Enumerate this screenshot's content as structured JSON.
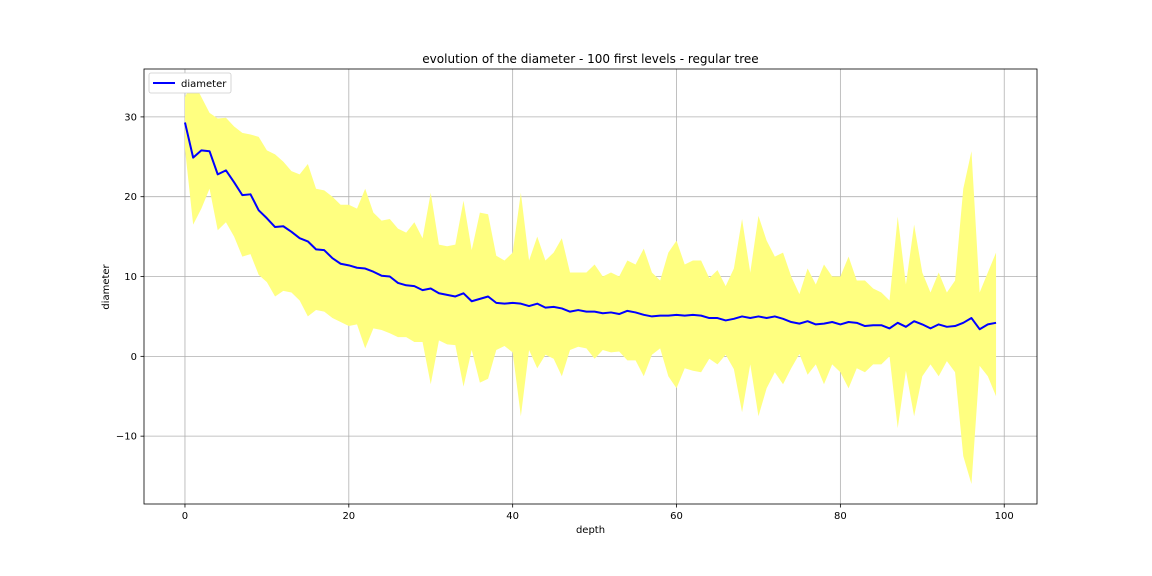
{
  "chart_data": {
    "type": "line",
    "title": "evolution of the diameter - 100 first levels - regular tree",
    "xlabel": "depth",
    "ylabel": "diameter",
    "xlim": [
      -5,
      104
    ],
    "ylim": [
      -18.5,
      36
    ],
    "xticks": [
      0,
      20,
      40,
      60,
      80,
      100
    ],
    "yticks": [
      -10,
      0,
      10,
      20,
      30
    ],
    "grid": true,
    "legend": {
      "placement": "top-left",
      "entries": [
        "diameter"
      ]
    },
    "colors": {
      "line": "#0000ff",
      "band": "#ffff80"
    },
    "x": [
      0,
      1,
      2,
      3,
      4,
      5,
      6,
      7,
      8,
      9,
      10,
      11,
      12,
      13,
      14,
      15,
      16,
      17,
      18,
      19,
      20,
      21,
      22,
      23,
      24,
      25,
      26,
      27,
      28,
      29,
      30,
      31,
      32,
      33,
      34,
      35,
      36,
      37,
      38,
      39,
      40,
      41,
      42,
      43,
      44,
      45,
      46,
      47,
      48,
      49,
      50,
      51,
      52,
      53,
      54,
      55,
      56,
      57,
      58,
      59,
      60,
      61,
      62,
      63,
      64,
      65,
      66,
      67,
      68,
      69,
      70,
      71,
      72,
      73,
      74,
      75,
      76,
      77,
      78,
      79,
      80,
      81,
      82,
      83,
      84,
      85,
      86,
      87,
      88,
      89,
      90,
      91,
      92,
      93,
      94,
      95,
      96,
      97,
      98,
      99
    ],
    "series": [
      {
        "name": "diameter",
        "values": [
          29.3,
          24.9,
          25.8,
          25.7,
          22.8,
          23.3,
          21.8,
          20.2,
          20.3,
          18.3,
          17.3,
          16.2,
          16.3,
          15.6,
          14.8,
          14.4,
          13.4,
          13.3,
          12.3,
          11.6,
          11.4,
          11.1,
          11.0,
          10.6,
          10.1,
          10.0,
          9.2,
          8.9,
          8.8,
          8.3,
          8.5,
          7.9,
          7.7,
          7.5,
          7.9,
          6.9,
          7.2,
          7.5,
          6.7,
          6.6,
          6.7,
          6.6,
          6.3,
          6.6,
          6.1,
          6.2,
          6.0,
          5.6,
          5.8,
          5.6,
          5.6,
          5.4,
          5.5,
          5.3,
          5.7,
          5.5,
          5.2,
          5.0,
          5.1,
          5.1,
          5.2,
          5.1,
          5.2,
          5.1,
          4.8,
          4.8,
          4.5,
          4.7,
          5.0,
          4.8,
          5.0,
          4.8,
          5.0,
          4.7,
          4.3,
          4.1,
          4.4,
          4.0,
          4.1,
          4.3,
          4.0,
          4.3,
          4.2,
          3.8,
          3.9,
          3.9,
          3.5,
          4.2,
          3.7,
          4.4,
          4.0,
          3.5,
          4.0,
          3.7,
          3.8,
          4.2,
          4.8,
          3.4,
          4.0,
          4.2
        ]
      }
    ],
    "band": {
      "upper": [
        32.5,
        34.5,
        32.5,
        30.5,
        29.8,
        29.9,
        28.8,
        28.0,
        27.8,
        27.5,
        25.8,
        25.3,
        24.4,
        23.2,
        22.8,
        24.1,
        21.0,
        20.8,
        20.0,
        19.0,
        19.0,
        18.5,
        21.0,
        18.0,
        17.0,
        17.2,
        16.0,
        15.5,
        16.8,
        14.8,
        20.5,
        14.0,
        13.8,
        14.0,
        19.5,
        13.3,
        18.0,
        17.8,
        12.6,
        12.0,
        13.0,
        20.5,
        12.0,
        15.0,
        12.0,
        13.0,
        14.8,
        10.5,
        10.5,
        10.5,
        11.5,
        10.0,
        10.5,
        10.0,
        12.0,
        11.5,
        13.5,
        10.5,
        9.5,
        13.0,
        14.5,
        11.5,
        12.0,
        12.0,
        9.8,
        10.8,
        8.8,
        11.0,
        17.2,
        10.5,
        17.6,
        14.5,
        12.5,
        13.0,
        10.0,
        7.8,
        11.0,
        9.0,
        11.5,
        10.0,
        10.0,
        12.5,
        9.5,
        9.5,
        8.5,
        8.0,
        7.0,
        17.5,
        9.0,
        16.5,
        10.5,
        8.0,
        10.5,
        8.0,
        9.5,
        21.0,
        25.7,
        8.0,
        10.5,
        13.0
      ],
      "lower": [
        26.0,
        16.5,
        18.5,
        21.0,
        15.8,
        16.8,
        15.0,
        12.5,
        12.8,
        10.2,
        9.3,
        7.5,
        8.2,
        8.0,
        7.0,
        5.0,
        5.8,
        5.6,
        4.8,
        4.3,
        3.8,
        4.0,
        1.0,
        3.5,
        3.3,
        2.9,
        2.4,
        2.4,
        1.8,
        1.8,
        -3.5,
        2.0,
        1.5,
        1.4,
        -3.8,
        0.8,
        -3.3,
        -2.8,
        0.8,
        1.3,
        0.5,
        -7.5,
        0.8,
        -1.5,
        0.2,
        -0.3,
        -2.5,
        0.8,
        1.2,
        1.0,
        -0.3,
        0.8,
        0.5,
        0.6,
        -0.5,
        -0.5,
        -2.5,
        0.2,
        1.0,
        -2.5,
        -4.0,
        -1.5,
        -1.8,
        -2.0,
        -0.3,
        -1.0,
        0.2,
        -1.6,
        -7.0,
        -1.0,
        -7.5,
        -4.0,
        -2.0,
        -3.5,
        -1.5,
        0.3,
        -2.3,
        -1.0,
        -3.5,
        -1.0,
        -2.0,
        -4.0,
        -1.5,
        -2.0,
        -1.0,
        -1.0,
        0.0,
        -9.0,
        -1.8,
        -7.5,
        -2.5,
        -1.0,
        -2.5,
        -0.6,
        -2.0,
        -12.5,
        -16.0,
        -1.2,
        -2.5,
        -5.0
      ]
    }
  }
}
